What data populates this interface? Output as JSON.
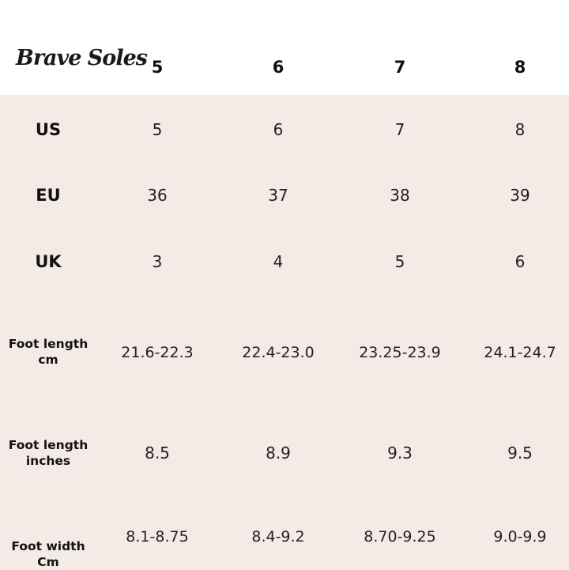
{
  "brand": "Brave Soles",
  "header_sizes": [
    "5",
    "6",
    "7",
    "8"
  ],
  "rows": [
    {
      "label": [
        "US"
      ],
      "values": [
        "5",
        "6",
        "7",
        "8"
      ]
    },
    {
      "label": [
        "EU"
      ],
      "values": [
        "36",
        "37",
        "38",
        "39"
      ]
    },
    {
      "label": [
        "UK"
      ],
      "values": [
        "3",
        "4",
        "5",
        "6"
      ]
    },
    {
      "label": [
        "Foot length",
        "cm"
      ],
      "values": [
        "21.6-22.3",
        "22.4-23.0",
        "23.25-23.9",
        "24.1-24.7"
      ]
    },
    {
      "label": [
        "Foot length",
        "inches"
      ],
      "values": [
        "8.5",
        "8.9",
        "9.3",
        "9.5"
      ]
    },
    {
      "label": [
        "Foot width",
        "Cm"
      ],
      "values": [
        "8.1-8.75",
        "8.4-9.2",
        "8.70-9.25",
        "9.0-9.9"
      ]
    }
  ],
  "colors": {
    "header_bg": "#ffffff",
    "table_bg": "#f4ebe7",
    "text": "#111111"
  }
}
